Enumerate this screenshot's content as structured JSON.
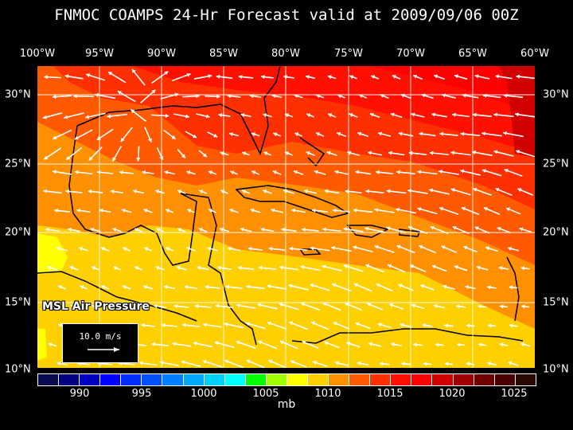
{
  "title": "FNMOC COAMPS 24-Hr Forecast valid at 2009/09/06 00Z",
  "longitude_labels": [
    "100°W",
    "95°W",
    "90°W",
    "85°W",
    "80°W",
    "75°W",
    "70°W",
    "65°W",
    "60°W"
  ],
  "latitude_labels": [
    "30°N",
    "25°N",
    "20°N",
    "15°N",
    "10°N"
  ],
  "field_label": "MSL Air Pressure",
  "reference_vector": {
    "label": "10.0 m/s",
    "icon": "arrow-right-icon"
  },
  "colorbar": {
    "unit": "mb",
    "tick_labels": [
      "990",
      "995",
      "1000",
      "1005",
      "1010",
      "1015",
      "1020",
      "1025"
    ],
    "colors": [
      "#0a0a50",
      "#000080",
      "#0000c0",
      "#0000ff",
      "#0030ff",
      "#0050ff",
      "#0080ff",
      "#00a8ff",
      "#00d0ff",
      "#00ffff",
      "#00ff00",
      "#a0ff00",
      "#ffff00",
      "#ffd000",
      "#ff9000",
      "#ff5a00",
      "#ff3000",
      "#ff1000",
      "#ff0000",
      "#d00000",
      "#a00000",
      "#700000",
      "#480000",
      "#280800"
    ]
  }
}
